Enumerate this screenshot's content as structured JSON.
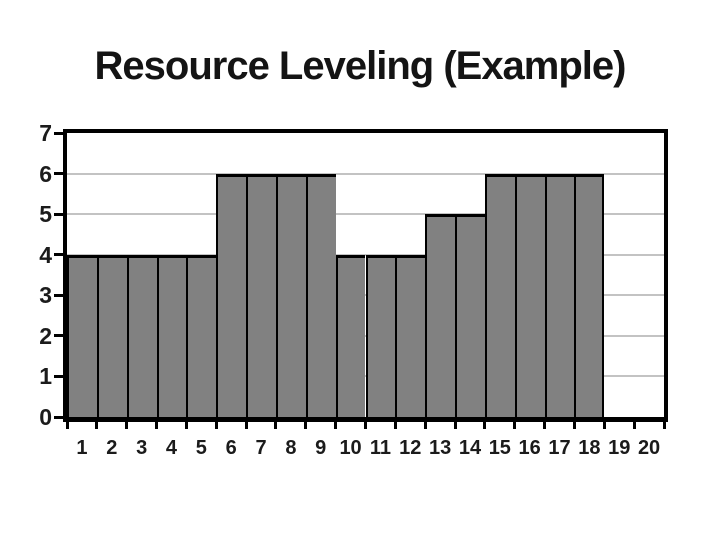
{
  "chart_data": {
    "type": "bar",
    "title": "Resource Leveling (Example)",
    "categories": [
      "1",
      "2",
      "3",
      "4",
      "5",
      "6",
      "7",
      "8",
      "9",
      "10",
      "11",
      "12",
      "13",
      "14",
      "15",
      "16",
      "17",
      "18",
      "19",
      "20"
    ],
    "values": [
      4,
      4,
      4,
      4,
      4,
      6,
      6,
      6,
      6,
      4,
      4,
      4,
      5,
      5,
      6,
      6,
      6,
      6,
      0,
      0
    ],
    "xlabel": "",
    "ylabel": "",
    "ylim": [
      0,
      7
    ],
    "yticks": [
      0,
      1,
      2,
      3,
      4,
      5,
      6,
      7
    ],
    "grid": "horizontal",
    "gridline_levels": [
      1,
      2,
      3,
      4,
      5,
      6
    ],
    "legend": "none",
    "colors": {
      "bar_fill": "#818181",
      "bar_border": "#000000",
      "gridline": "#c3c3c3",
      "axis": "#000000",
      "label_text": "#1b1b1b",
      "background": "#ffffff"
    }
  }
}
